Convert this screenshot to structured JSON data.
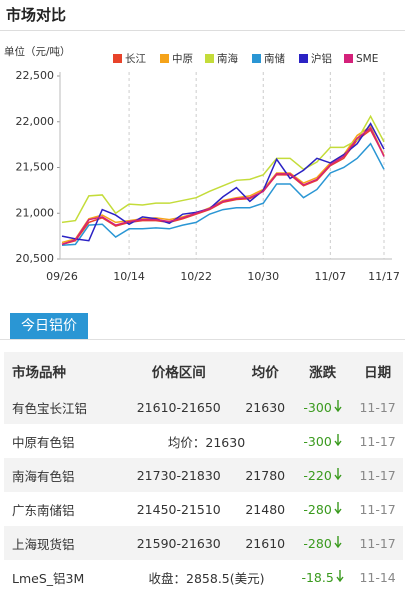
{
  "header": {
    "title": "市场对比"
  },
  "chart_data": {
    "type": "line",
    "unit_label": "单位（元/吨）",
    "categories": [
      "09/26",
      null,
      null,
      null,
      null,
      "10/14",
      null,
      null,
      null,
      null,
      "10/22",
      null,
      null,
      null,
      null,
      "10/30",
      null,
      null,
      null,
      null,
      "11/07",
      null,
      null,
      null,
      "11/17"
    ],
    "ylim": [
      20500,
      22500
    ],
    "yticks": [
      {
        "value": 20500,
        "label": "20,500"
      },
      {
        "value": 21000,
        "label": "21,000"
      },
      {
        "value": 21500,
        "label": "21,500"
      },
      {
        "value": 22000,
        "label": "22,000"
      },
      {
        "value": 22500,
        "label": "22,500"
      }
    ],
    "series": [
      {
        "name": "长江",
        "color": "#e8432a",
        "values": [
          20660,
          20700,
          20900,
          20950,
          20860,
          20900,
          20920,
          20920,
          20900,
          20940,
          20990,
          21040,
          21120,
          21150,
          21160,
          21240,
          21420,
          21420,
          21300,
          21360,
          21520,
          21600,
          21800,
          21910,
          21630
        ]
      },
      {
        "name": "中原",
        "color": "#f5a31a",
        "values": [
          20680,
          20720,
          20940,
          20980,
          20900,
          20920,
          20940,
          20950,
          20930,
          20960,
          21000,
          21060,
          21140,
          21170,
          21190,
          21260,
          21440,
          21440,
          21330,
          21390,
          21550,
          21640,
          21850,
          21950,
          21630
        ]
      },
      {
        "name": "南海",
        "color": "#c4dc3a",
        "values": [
          20900,
          20920,
          21190,
          21200,
          21000,
          21100,
          21090,
          21110,
          21110,
          21140,
          21170,
          21240,
          21300,
          21360,
          21370,
          21420,
          21600,
          21600,
          21480,
          21560,
          21720,
          21720,
          21800,
          22060,
          21780
        ]
      },
      {
        "name": "南储",
        "color": "#2a96d4",
        "values": [
          20650,
          20660,
          20870,
          20880,
          20740,
          20830,
          20830,
          20840,
          20830,
          20870,
          20900,
          20990,
          21040,
          21060,
          21060,
          21110,
          21320,
          21320,
          21170,
          21260,
          21440,
          21500,
          21600,
          21760,
          21480
        ]
      },
      {
        "name": "沪铝",
        "color": "#2b22c4",
        "values": [
          20750,
          20720,
          20700,
          21040,
          20980,
          20880,
          20960,
          20940,
          20890,
          20990,
          21010,
          21050,
          21180,
          21280,
          21130,
          21250,
          21590,
          21380,
          21470,
          21600,
          21550,
          21640,
          21760,
          21980,
          21700
        ]
      },
      {
        "name": "SME",
        "color": "#d4217a",
        "values": [
          20660,
          20710,
          20930,
          20960,
          20870,
          20910,
          20930,
          20930,
          20910,
          20950,
          21000,
          21050,
          21130,
          21160,
          21170,
          21240,
          21430,
          21430,
          21310,
          21370,
          21530,
          21620,
          21820,
          21930,
          21620
        ]
      }
    ]
  },
  "tab": {
    "title": "今日铝价"
  },
  "table": {
    "headers": [
      "市场品种",
      "价格区间",
      "均价",
      "涨跌",
      "日期"
    ],
    "rows": [
      [
        "有色宝长江铝",
        "21610-21650",
        "21630",
        "-300",
        "11-17"
      ],
      [
        "中原有色铝",
        "均价：21630",
        "-300",
        "11-17"
      ],
      [
        "南海有色铝",
        "21730-21830",
        "21780",
        "-220",
        "11-17"
      ],
      [
        "广东南储铝",
        "21450-21510",
        "21480",
        "-280",
        "11-17"
      ],
      [
        "上海现货铝",
        "21590-21630",
        "21610",
        "-280",
        "11-17"
      ],
      [
        "LmeS_铝3M",
        "收盘：2858.5(美元)",
        "-18.5",
        "11-14"
      ]
    ]
  }
}
